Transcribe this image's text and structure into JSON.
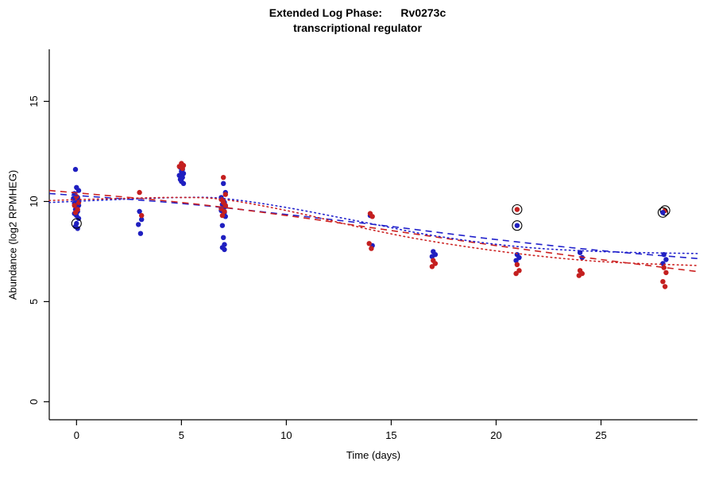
{
  "chart_data": {
    "type": "scatter",
    "title": "Extended Log Phase:      Rv0273c",
    "subtitle": "transcriptional regulator",
    "xlabel": "Time  (days)",
    "ylabel": "Abundance  (log2 RPMHEG)",
    "xlim": [
      -1.3,
      29.6
    ],
    "ylim": [
      -0.9,
      17.6
    ],
    "xticks": [
      0,
      5,
      10,
      15,
      20,
      25
    ],
    "yticks": [
      0,
      5,
      10,
      15
    ],
    "grid": false,
    "legend": "none",
    "point_radius": 3.2,
    "axis_color": "#000000",
    "series": [
      {
        "name": "blue-condition-points",
        "color": "#1f1fc0",
        "points": [
          [
            -0.05,
            11.6
          ],
          [
            0,
            10.7
          ],
          [
            0.1,
            10.55
          ],
          [
            -0.1,
            10.4
          ],
          [
            0.05,
            10.2
          ],
          [
            -0.15,
            10.15
          ],
          [
            0.1,
            10.05
          ],
          [
            0,
            9.95
          ],
          [
            -0.1,
            9.9
          ],
          [
            0.1,
            9.8
          ],
          [
            0,
            9.7
          ],
          [
            -0.05,
            9.6
          ],
          [
            0.05,
            9.5
          ],
          [
            -0.1,
            9.4
          ],
          [
            0,
            9.3
          ],
          [
            0.1,
            9.15
          ],
          [
            -0.05,
            8.75
          ],
          [
            0.05,
            8.65
          ],
          [
            3,
            9.5
          ],
          [
            3.1,
            9.1
          ],
          [
            2.95,
            8.85
          ],
          [
            3.05,
            8.4
          ],
          [
            4.95,
            11.7
          ],
          [
            5.05,
            11.6
          ],
          [
            5,
            11.5
          ],
          [
            5.1,
            11.4
          ],
          [
            4.9,
            11.3
          ],
          [
            5.05,
            11.2
          ],
          [
            4.95,
            11.1
          ],
          [
            5,
            11.0
          ],
          [
            5.1,
            10.9
          ],
          [
            7,
            10.9
          ],
          [
            7.1,
            10.45
          ],
          [
            6.9,
            10.2
          ],
          [
            7,
            10.05
          ],
          [
            7.05,
            9.95
          ],
          [
            6.95,
            9.85
          ],
          [
            7.1,
            9.75
          ],
          [
            7,
            9.65
          ],
          [
            6.9,
            9.55
          ],
          [
            7.05,
            9.45
          ],
          [
            7,
            9.35
          ],
          [
            7.1,
            9.25
          ],
          [
            6.95,
            8.8
          ],
          [
            7,
            8.2
          ],
          [
            7.05,
            7.85
          ],
          [
            6.95,
            7.7
          ],
          [
            7.05,
            7.6
          ],
          [
            14,
            9.3
          ],
          [
            14.1,
            7.8
          ],
          [
            17,
            7.5
          ],
          [
            17.1,
            7.35
          ],
          [
            16.95,
            7.25
          ],
          [
            21,
            7.35
          ],
          [
            21.1,
            7.2
          ],
          [
            20.95,
            7.05
          ],
          [
            24,
            7.45
          ],
          [
            24.1,
            7.2
          ],
          [
            28,
            7.35
          ],
          [
            28.1,
            7.1
          ],
          [
            27.95,
            6.9
          ]
        ]
      },
      {
        "name": "red-condition-points",
        "color": "#c41f1f",
        "points": [
          [
            0,
            10.25
          ],
          [
            0.1,
            9.95
          ],
          [
            -0.1,
            9.8
          ],
          [
            0.05,
            9.6
          ],
          [
            -0.05,
            9.45
          ],
          [
            3,
            10.45
          ],
          [
            3.1,
            9.3
          ],
          [
            5,
            11.9
          ],
          [
            5.1,
            11.8
          ],
          [
            4.9,
            11.75
          ],
          [
            5.05,
            11.65
          ],
          [
            7,
            11.2
          ],
          [
            7.1,
            10.35
          ],
          [
            6.9,
            10.1
          ],
          [
            7,
            9.95
          ],
          [
            7.1,
            9.8
          ],
          [
            6.9,
            9.65
          ],
          [
            7.05,
            9.5
          ],
          [
            6.95,
            9.3
          ],
          [
            14,
            9.4
          ],
          [
            14.1,
            9.25
          ],
          [
            13.95,
            7.9
          ],
          [
            14.05,
            7.65
          ],
          [
            17,
            7.05
          ],
          [
            17.1,
            6.9
          ],
          [
            16.95,
            6.75
          ],
          [
            21,
            6.85
          ],
          [
            21.1,
            6.55
          ],
          [
            20.95,
            6.4
          ],
          [
            24,
            6.55
          ],
          [
            24.1,
            6.4
          ],
          [
            23.95,
            6.3
          ],
          [
            28,
            6.7
          ],
          [
            28.1,
            6.45
          ],
          [
            27.95,
            6.0
          ],
          [
            28.05,
            5.75
          ]
        ]
      }
    ],
    "flagged_points": [
      {
        "x": 0,
        "y": 8.9,
        "color": "#1f1fc0"
      },
      {
        "x": 21,
        "y": 9.6,
        "color": "#c41f1f"
      },
      {
        "x": 21,
        "y": 8.8,
        "color": "#1f1fc0"
      },
      {
        "x": 28.05,
        "y": 9.55,
        "color": "#c41f1f"
      },
      {
        "x": 27.95,
        "y": 9.45,
        "color": "#1f1fc0"
      }
    ],
    "curves": [
      {
        "name": "blue-dashed-fit",
        "color": "#2222cc",
        "dash": "8,6",
        "cap": "butt",
        "points": [
          [
            -1.3,
            10.4
          ],
          [
            5,
            9.9
          ],
          [
            10,
            9.35
          ],
          [
            15,
            8.75
          ],
          [
            20,
            8.1
          ],
          [
            25,
            7.55
          ],
          [
            29.6,
            7.15
          ]
        ]
      },
      {
        "name": "red-dashed-fit",
        "color": "#cc2222",
        "dash": "8,6",
        "cap": "butt",
        "points": [
          [
            -1.3,
            10.55
          ],
          [
            5,
            9.95
          ],
          [
            10,
            9.3
          ],
          [
            15,
            8.55
          ],
          [
            20,
            7.8
          ],
          [
            25,
            7.1
          ],
          [
            29.6,
            6.5
          ]
        ]
      },
      {
        "name": "blue-dotted-fit",
        "color": "#2222cc",
        "dash": "1.5,4",
        "cap": "round",
        "points": [
          [
            -1.3,
            9.95
          ],
          [
            2,
            10.1
          ],
          [
            5,
            10.2
          ],
          [
            7,
            10.15
          ],
          [
            10,
            9.7
          ],
          [
            14,
            8.9
          ],
          [
            17,
            8.3
          ],
          [
            21,
            7.75
          ],
          [
            25,
            7.5
          ],
          [
            29.6,
            7.4
          ]
        ]
      },
      {
        "name": "red-dotted-fit",
        "color": "#cc2222",
        "dash": "1.5,4",
        "cap": "round",
        "points": [
          [
            -1.3,
            10.05
          ],
          [
            2,
            10.15
          ],
          [
            5,
            10.2
          ],
          [
            7,
            10.1
          ],
          [
            10,
            9.55
          ],
          [
            14,
            8.6
          ],
          [
            17,
            8.0
          ],
          [
            21,
            7.4
          ],
          [
            25,
            7.0
          ],
          [
            29.6,
            6.8
          ]
        ]
      }
    ]
  }
}
